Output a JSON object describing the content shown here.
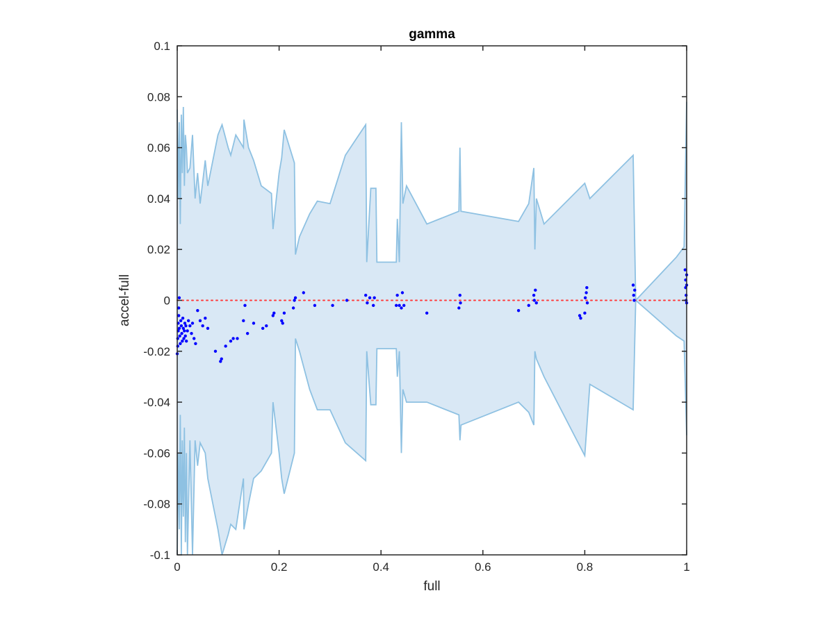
{
  "chart_data": {
    "type": "scatter",
    "title": "gamma",
    "xlabel": "full",
    "ylabel": "accel-full",
    "xlim": [
      0,
      1
    ],
    "ylim": [
      -0.1,
      0.1
    ],
    "x_ticks": [
      0,
      0.2,
      0.4,
      0.6,
      0.8,
      1
    ],
    "x_tick_labels": [
      "0",
      "0.2",
      "0.4",
      "0.6",
      "0.8",
      "1"
    ],
    "y_ticks": [
      -0.1,
      -0.08,
      -0.06,
      -0.04,
      -0.02,
      0,
      0.02,
      0.04,
      0.06,
      0.08,
      0.1
    ],
    "y_tick_labels": [
      "-0.1",
      "-0.08",
      "-0.06",
      "-0.04",
      "-0.02",
      "0",
      "0.02",
      "0.04",
      "0.06",
      "0.08",
      "0.1"
    ],
    "grid": false,
    "colors": {
      "band_fill": "#d9e8f5",
      "band_edge": "#8ec1e2",
      "points": "#0000ff",
      "zero_line": "#ff3b3b",
      "axes": "#262626"
    },
    "zero_line": {
      "y": 0,
      "style": "dotted"
    },
    "band_upper": [
      [
        0,
        0.075
      ],
      [
        0.002,
        0.04
      ],
      [
        0.004,
        0.07
      ],
      [
        0.006,
        0.03
      ],
      [
        0.008,
        0.073
      ],
      [
        0.01,
        0.05
      ],
      [
        0.012,
        0.076
      ],
      [
        0.014,
        0.045
      ],
      [
        0.016,
        0.065
      ],
      [
        0.018,
        0.06
      ],
      [
        0.02,
        0.05
      ],
      [
        0.025,
        0.052
      ],
      [
        0.03,
        0.065
      ],
      [
        0.035,
        0.04
      ],
      [
        0.04,
        0.05
      ],
      [
        0.045,
        0.038
      ],
      [
        0.055,
        0.055
      ],
      [
        0.06,
        0.045
      ],
      [
        0.07,
        0.055
      ],
      [
        0.08,
        0.065
      ],
      [
        0.088,
        0.069
      ],
      [
        0.1,
        0.06
      ],
      [
        0.105,
        0.057
      ],
      [
        0.115,
        0.065
      ],
      [
        0.13,
        0.06
      ],
      [
        0.131,
        0.071
      ],
      [
        0.14,
        0.06
      ],
      [
        0.15,
        0.055
      ],
      [
        0.165,
        0.045
      ],
      [
        0.185,
        0.042
      ],
      [
        0.188,
        0.028
      ],
      [
        0.2,
        0.05
      ],
      [
        0.205,
        0.056
      ],
      [
        0.21,
        0.067
      ],
      [
        0.23,
        0.054
      ],
      [
        0.232,
        0.018
      ],
      [
        0.24,
        0.025
      ],
      [
        0.26,
        0.034
      ],
      [
        0.275,
        0.039
      ],
      [
        0.3,
        0.038
      ],
      [
        0.33,
        0.057
      ],
      [
        0.37,
        0.069
      ],
      [
        0.372,
        0.015
      ],
      [
        0.38,
        0.044
      ],
      [
        0.39,
        0.044
      ],
      [
        0.392,
        0.015
      ],
      [
        0.43,
        0.015
      ],
      [
        0.432,
        0.032
      ],
      [
        0.436,
        0.015
      ],
      [
        0.44,
        0.07
      ],
      [
        0.443,
        0.038
      ],
      [
        0.45,
        0.045
      ],
      [
        0.49,
        0.03
      ],
      [
        0.553,
        0.035
      ],
      [
        0.555,
        0.06
      ],
      [
        0.557,
        0.035
      ],
      [
        0.67,
        0.031
      ],
      [
        0.69,
        0.038
      ],
      [
        0.7,
        0.052
      ],
      [
        0.702,
        0.02
      ],
      [
        0.705,
        0.04
      ],
      [
        0.72,
        0.03
      ],
      [
        0.8,
        0.046
      ],
      [
        0.81,
        0.04
      ],
      [
        0.895,
        0.057
      ],
      [
        0.9,
        0.0
      ],
      [
        0.98,
        0.017
      ],
      [
        0.995,
        0.021
      ],
      [
        1.0,
        0.078
      ]
    ],
    "band_lower": [
      [
        0,
        -0.1
      ],
      [
        0.002,
        -0.06
      ],
      [
        0.004,
        -0.09
      ],
      [
        0.006,
        -0.045
      ],
      [
        0.008,
        -0.1
      ],
      [
        0.01,
        -0.055
      ],
      [
        0.012,
        -0.085
      ],
      [
        0.014,
        -0.05
      ],
      [
        0.016,
        -0.095
      ],
      [
        0.018,
        -0.06
      ],
      [
        0.02,
        -0.1
      ],
      [
        0.025,
        -0.055
      ],
      [
        0.03,
        -0.1
      ],
      [
        0.035,
        -0.055
      ],
      [
        0.04,
        -0.065
      ],
      [
        0.045,
        -0.056
      ],
      [
        0.055,
        -0.06
      ],
      [
        0.06,
        -0.07
      ],
      [
        0.07,
        -0.08
      ],
      [
        0.08,
        -0.09
      ],
      [
        0.088,
        -0.1
      ],
      [
        0.1,
        -0.092
      ],
      [
        0.105,
        -0.088
      ],
      [
        0.115,
        -0.09
      ],
      [
        0.13,
        -0.07
      ],
      [
        0.131,
        -0.09
      ],
      [
        0.14,
        -0.08
      ],
      [
        0.15,
        -0.07
      ],
      [
        0.165,
        -0.067
      ],
      [
        0.185,
        -0.06
      ],
      [
        0.188,
        -0.04
      ],
      [
        0.2,
        -0.06
      ],
      [
        0.205,
        -0.07
      ],
      [
        0.21,
        -0.076
      ],
      [
        0.23,
        -0.06
      ],
      [
        0.232,
        -0.015
      ],
      [
        0.24,
        -0.02
      ],
      [
        0.26,
        -0.035
      ],
      [
        0.275,
        -0.043
      ],
      [
        0.3,
        -0.043
      ],
      [
        0.33,
        -0.056
      ],
      [
        0.37,
        -0.063
      ],
      [
        0.372,
        -0.02
      ],
      [
        0.38,
        -0.041
      ],
      [
        0.39,
        -0.041
      ],
      [
        0.392,
        -0.019
      ],
      [
        0.43,
        -0.019
      ],
      [
        0.432,
        -0.03
      ],
      [
        0.436,
        -0.02
      ],
      [
        0.44,
        -0.06
      ],
      [
        0.443,
        -0.035
      ],
      [
        0.45,
        -0.04
      ],
      [
        0.49,
        -0.04
      ],
      [
        0.553,
        -0.045
      ],
      [
        0.555,
        -0.055
      ],
      [
        0.557,
        -0.049
      ],
      [
        0.67,
        -0.04
      ],
      [
        0.69,
        -0.044
      ],
      [
        0.7,
        -0.049
      ],
      [
        0.702,
        -0.02
      ],
      [
        0.705,
        -0.023
      ],
      [
        0.72,
        -0.03
      ],
      [
        0.8,
        -0.061
      ],
      [
        0.81,
        -0.033
      ],
      [
        0.895,
        -0.043
      ],
      [
        0.9,
        0.0
      ],
      [
        0.98,
        -0.014
      ],
      [
        0.995,
        -0.016
      ],
      [
        1.0,
        -0.053
      ]
    ],
    "points": [
      {
        "x": 0.0,
        "y": -0.021
      },
      {
        "x": 0.001,
        "y": -0.018
      },
      {
        "x": 0.001,
        "y": -0.015
      },
      {
        "x": 0.002,
        "y": -0.012
      },
      {
        "x": 0.002,
        "y": -0.009
      },
      {
        "x": 0.003,
        "y": -0.006
      },
      {
        "x": 0.003,
        "y": -0.003
      },
      {
        "x": 0.004,
        "y": 0.001
      },
      {
        "x": 0.004,
        "y": -0.011
      },
      {
        "x": 0.005,
        "y": -0.014
      },
      {
        "x": 0.006,
        "y": -0.017
      },
      {
        "x": 0.007,
        "y": -0.008
      },
      {
        "x": 0.008,
        "y": -0.01
      },
      {
        "x": 0.009,
        "y": -0.013
      },
      {
        "x": 0.01,
        "y": -0.016
      },
      {
        "x": 0.011,
        "y": -0.007
      },
      {
        "x": 0.012,
        "y": -0.011
      },
      {
        "x": 0.013,
        "y": -0.015
      },
      {
        "x": 0.014,
        "y": -0.012
      },
      {
        "x": 0.015,
        "y": -0.009
      },
      {
        "x": 0.016,
        "y": -0.014
      },
      {
        "x": 0.017,
        "y": -0.01
      },
      {
        "x": 0.018,
        "y": -0.016
      },
      {
        "x": 0.02,
        "y": -0.012
      },
      {
        "x": 0.022,
        "y": -0.008
      },
      {
        "x": 0.025,
        "y": -0.01
      },
      {
        "x": 0.028,
        "y": -0.013
      },
      {
        "x": 0.03,
        "y": -0.009
      },
      {
        "x": 0.033,
        "y": -0.015
      },
      {
        "x": 0.036,
        "y": -0.017
      },
      {
        "x": 0.04,
        "y": -0.004
      },
      {
        "x": 0.045,
        "y": -0.008
      },
      {
        "x": 0.05,
        "y": -0.01
      },
      {
        "x": 0.055,
        "y": -0.007
      },
      {
        "x": 0.06,
        "y": -0.011
      },
      {
        "x": 0.075,
        "y": -0.02
      },
      {
        "x": 0.085,
        "y": -0.024
      },
      {
        "x": 0.087,
        "y": -0.023
      },
      {
        "x": 0.095,
        "y": -0.018
      },
      {
        "x": 0.105,
        "y": -0.016
      },
      {
        "x": 0.11,
        "y": -0.015
      },
      {
        "x": 0.118,
        "y": -0.015
      },
      {
        "x": 0.13,
        "y": -0.008
      },
      {
        "x": 0.133,
        "y": -0.002
      },
      {
        "x": 0.138,
        "y": -0.013
      },
      {
        "x": 0.15,
        "y": -0.009
      },
      {
        "x": 0.168,
        "y": -0.011
      },
      {
        "x": 0.175,
        "y": -0.01
      },
      {
        "x": 0.188,
        "y": -0.006
      },
      {
        "x": 0.19,
        "y": -0.005
      },
      {
        "x": 0.205,
        "y": -0.008
      },
      {
        "x": 0.207,
        "y": -0.009
      },
      {
        "x": 0.21,
        "y": -0.005
      },
      {
        "x": 0.228,
        "y": -0.003
      },
      {
        "x": 0.23,
        "y": 0.0
      },
      {
        "x": 0.232,
        "y": 0.001
      },
      {
        "x": 0.248,
        "y": 0.003
      },
      {
        "x": 0.27,
        "y": -0.002
      },
      {
        "x": 0.305,
        "y": -0.002
      },
      {
        "x": 0.333,
        "y": 0.0
      },
      {
        "x": 0.37,
        "y": 0.002
      },
      {
        "x": 0.373,
        "y": -0.001
      },
      {
        "x": 0.378,
        "y": 0.001
      },
      {
        "x": 0.385,
        "y": -0.002
      },
      {
        "x": 0.387,
        "y": 0.001
      },
      {
        "x": 0.43,
        "y": -0.002
      },
      {
        "x": 0.432,
        "y": 0.002
      },
      {
        "x": 0.436,
        "y": -0.002
      },
      {
        "x": 0.44,
        "y": -0.003
      },
      {
        "x": 0.442,
        "y": 0.003
      },
      {
        "x": 0.445,
        "y": -0.002
      },
      {
        "x": 0.49,
        "y": -0.005
      },
      {
        "x": 0.553,
        "y": -0.003
      },
      {
        "x": 0.555,
        "y": 0.002
      },
      {
        "x": 0.556,
        "y": -0.001
      },
      {
        "x": 0.67,
        "y": -0.004
      },
      {
        "x": 0.69,
        "y": -0.002
      },
      {
        "x": 0.7,
        "y": 0.002
      },
      {
        "x": 0.701,
        "y": 0.0
      },
      {
        "x": 0.703,
        "y": 0.004
      },
      {
        "x": 0.705,
        "y": -0.001
      },
      {
        "x": 0.79,
        "y": -0.006
      },
      {
        "x": 0.792,
        "y": -0.007
      },
      {
        "x": 0.8,
        "y": -0.005
      },
      {
        "x": 0.801,
        "y": 0.001
      },
      {
        "x": 0.803,
        "y": 0.003
      },
      {
        "x": 0.804,
        "y": 0.005
      },
      {
        "x": 0.805,
        "y": -0.001
      },
      {
        "x": 0.895,
        "y": 0.006
      },
      {
        "x": 0.896,
        "y": 0.002
      },
      {
        "x": 0.897,
        "y": 0.0
      },
      {
        "x": 0.898,
        "y": 0.004
      },
      {
        "x": 0.997,
        "y": 0.012
      },
      {
        "x": 0.998,
        "y": 0.008
      },
      {
        "x": 0.998,
        "y": 0.005
      },
      {
        "x": 0.999,
        "y": 0.002
      },
      {
        "x": 0.999,
        "y": 0.0
      },
      {
        "x": 1.0,
        "y": 0.01
      },
      {
        "x": 1.0,
        "y": 0.006
      },
      {
        "x": 1.0,
        "y": -0.001
      }
    ]
  }
}
